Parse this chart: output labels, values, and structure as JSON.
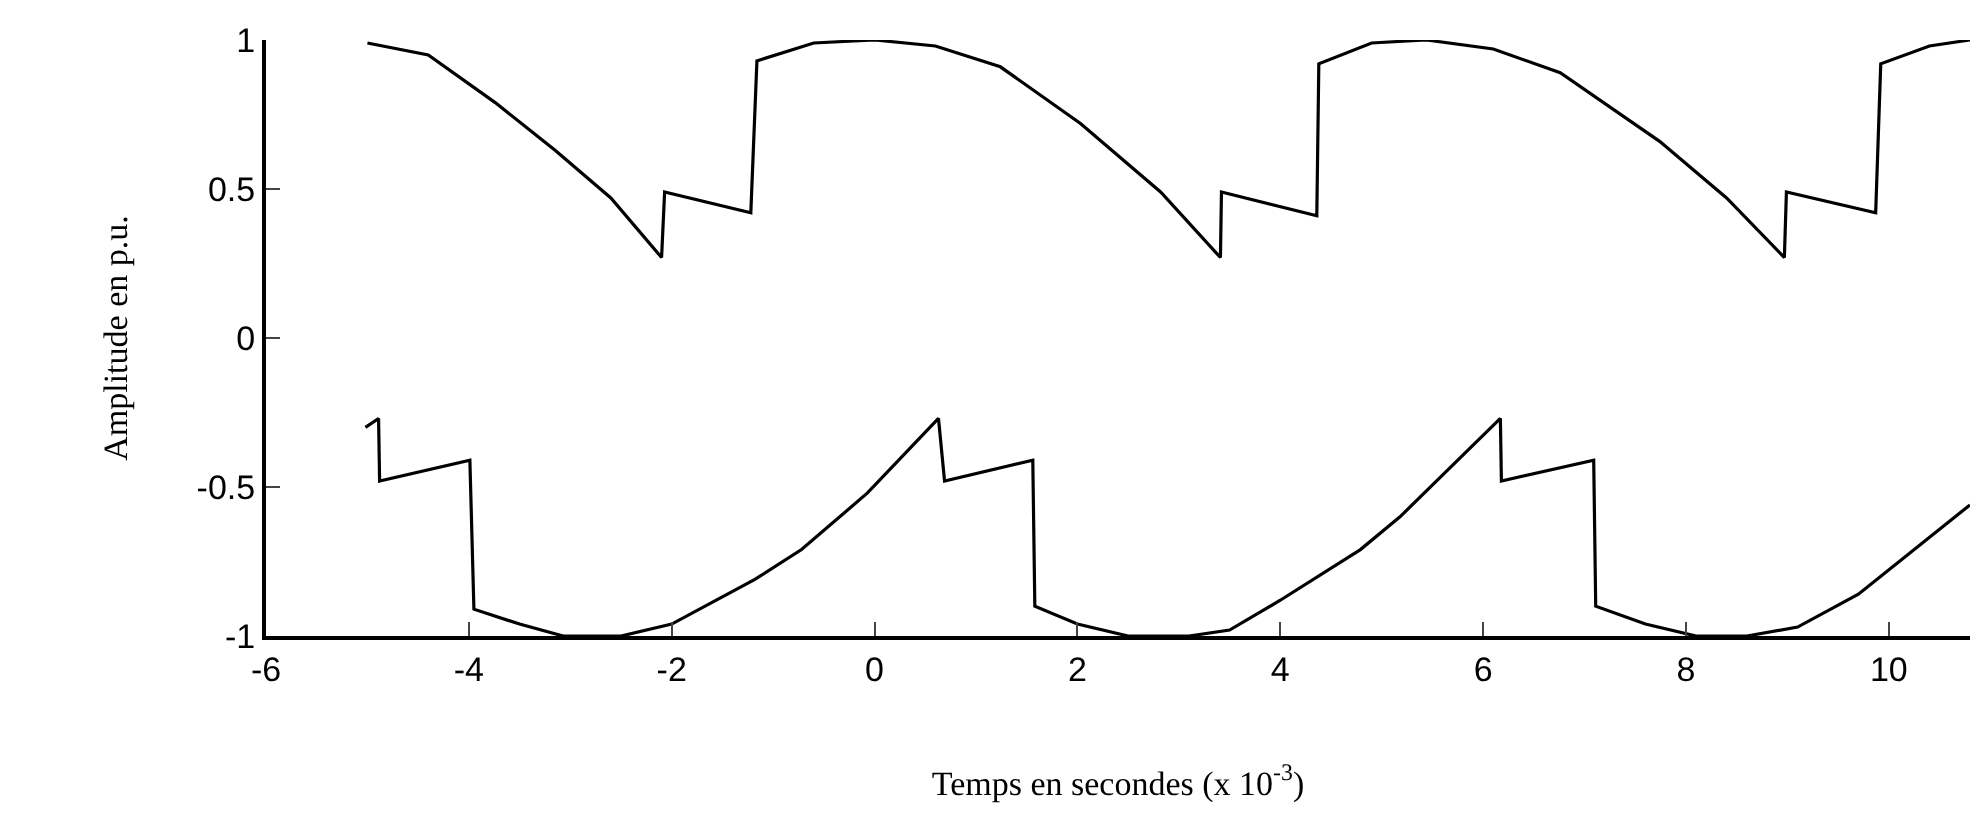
{
  "chart_data": {
    "type": "line",
    "xlabel": "Temps en secondes (x 10$^{-3}$)",
    "ylabel": "Amplitude en p.u.",
    "xlim": [
      -6,
      10.8
    ],
    "xticks": [
      -6,
      -4,
      -2,
      0,
      2,
      4,
      6,
      8,
      10
    ],
    "ylim": [
      -1,
      1
    ],
    "yticks": [
      -1,
      -0.5,
      0,
      0.5,
      1
    ],
    "series": [
      {
        "color": "#000000",
        "x": [
          -5.0,
          -4.4,
          -3.74,
          -3.15,
          -2.6,
          -2.1,
          -2.07,
          -1.22,
          -1.16,
          -0.6,
          0,
          0.6,
          1.24,
          2.03,
          2.82,
          3.41,
          3.42,
          4.36,
          4.38,
          4.9,
          5.44,
          6.1,
          6.76,
          7.74,
          8.4,
          8.97,
          8.99,
          9.87,
          9.92,
          10.4,
          10.8
        ],
        "values": [
          0.99,
          0.95,
          0.79,
          0.63,
          0.47,
          0.27,
          0.49,
          0.42,
          0.93,
          0.99,
          1.0,
          0.98,
          0.91,
          0.72,
          0.49,
          0.27,
          0.49,
          0.41,
          0.92,
          0.99,
          1.0,
          0.97,
          0.89,
          0.66,
          0.47,
          0.27,
          0.49,
          0.42,
          0.92,
          0.98,
          1.0
        ]
      },
      {
        "color": "#000000",
        "x": [
          -5.02,
          -4.89,
          -4.88,
          -3.99,
          -3.95,
          -3.5,
          -3.07,
          -2.5,
          -2.0,
          -1.18,
          -0.72,
          -0.07,
          0.63,
          0.69,
          1.56,
          1.58,
          2.0,
          2.5,
          3.1,
          3.5,
          4.0,
          4.79,
          5.18,
          6.17,
          6.18,
          7.09,
          7.11,
          7.6,
          8.1,
          8.6,
          9.1,
          9.7,
          10.8
        ],
        "values": [
          -0.3,
          -0.27,
          -0.48,
          -0.41,
          -0.91,
          -0.96,
          -1.0,
          -1.0,
          -0.96,
          -0.81,
          -0.71,
          -0.52,
          -0.27,
          -0.48,
          -0.41,
          -0.9,
          -0.96,
          -1.0,
          -1.0,
          -0.98,
          -0.88,
          -0.71,
          -0.6,
          -0.27,
          -0.48,
          -0.41,
          -0.9,
          -0.96,
          -1.0,
          -1.0,
          -0.97,
          -0.86,
          -0.56
        ]
      }
    ]
  }
}
